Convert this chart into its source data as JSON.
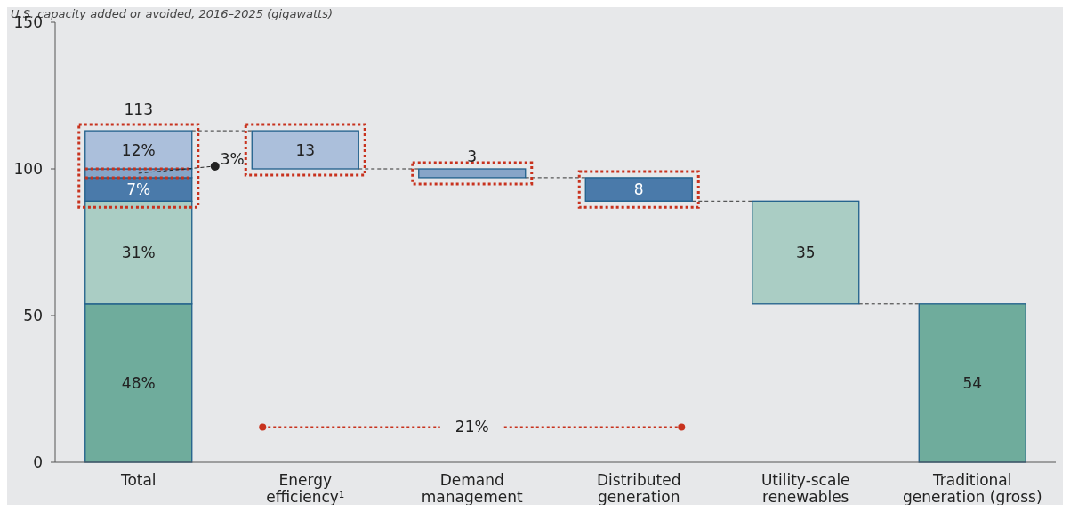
{
  "chart_data": {
    "type": "bar",
    "subtitle": "U.S. capacity added or avoided, 2016–2025 (gigawatts)",
    "categories": [
      "Total",
      "Energy efficiency$^{1}$",
      "Demand management",
      "Distributed generation",
      "Utility-scale renewables",
      "Traditional generation (gross)"
    ],
    "stacked": true,
    "ylim": [
      0,
      150
    ],
    "yticks": [
      0,
      50,
      100,
      150
    ],
    "grid": false,
    "series": [
      {
        "colors": [
          "#6fac9c",
          "#abbfdb",
          "#87a5c8",
          "#4a7aaa",
          "#aacdc4",
          "#6fac9c"
        ],
        "base": [
          0,
          100,
          97,
          89,
          54,
          0
        ],
        "values": [
          54,
          13,
          3,
          8,
          35,
          54
        ],
        "value_labels": [
          null,
          "13",
          "3",
          "8",
          "35",
          "54"
        ]
      },
      {
        "color": "#aacdc4",
        "values": [
          35,
          null,
          null,
          null,
          null,
          null
        ]
      },
      {
        "color": "#4a7aaa",
        "values": [
          8,
          null,
          null,
          null,
          null,
          null
        ]
      },
      {
        "color": "#87a5c8",
        "values": [
          3,
          null,
          null,
          null,
          null,
          null
        ]
      },
      {
        "color": "#abbfdb",
        "values": [
          13,
          null,
          null,
          null,
          null,
          null
        ]
      }
    ],
    "totals": [
      "113",
      null,
      null,
      null,
      null,
      null
    ],
    "annotations": [
      "48%",
      "31%",
      "7%",
      {
        "text": "3%",
        "x": "Total",
        "y": 98.5
      },
      "12%",
      "21%"
    ]
  }
}
